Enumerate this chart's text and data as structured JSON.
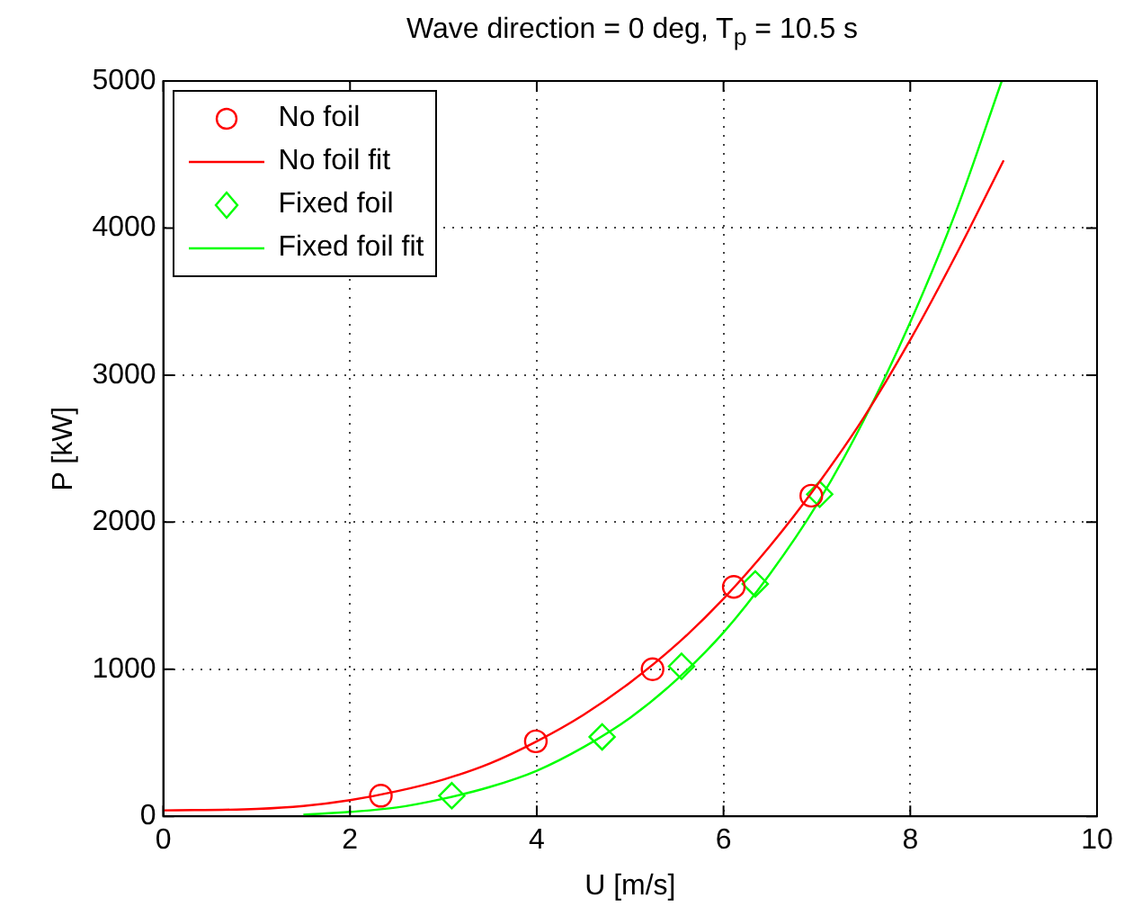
{
  "chart_data": {
    "type": "scatter",
    "title": "Wave direction = 0 deg, T$_{p}$ = 10.5 s",
    "xlabel": "U [m/s]",
    "ylabel": "P [kW]",
    "xlim": [
      0,
      10
    ],
    "xticks": [
      0,
      2,
      4,
      6,
      8,
      10
    ],
    "ylim": [
      0,
      5000
    ],
    "yticks": [
      0,
      1000,
      2000,
      3000,
      4000,
      5000
    ],
    "grid": true,
    "legend": "top left",
    "series": [
      {
        "name": "No foil",
        "marker": "circle",
        "color": "#ff0000",
        "x": [
          2.33,
          3.99,
          5.24,
          6.11,
          6.94
        ],
        "values": [
          140,
          510,
          1000,
          1560,
          2180
        ]
      },
      {
        "name": "No foil fit",
        "type": "line",
        "marker": "none",
        "color": "#ff0000",
        "x": [
          0,
          1,
          1.5,
          2,
          2.5,
          3,
          3.5,
          4,
          4.5,
          5,
          5.5,
          6,
          6.5,
          7,
          7.5,
          8,
          8.5,
          9
        ],
        "values": [
          40,
          50,
          70,
          110,
          170,
          250,
          360,
          510,
          690,
          910,
          1170,
          1480,
          1840,
          2250,
          2710,
          3240,
          3830,
          4460
        ]
      },
      {
        "name": "Fixed foil",
        "marker": "diamond",
        "color": "#00ff00",
        "x": [
          3.09,
          4.7,
          5.55,
          6.34,
          7.03
        ],
        "values": [
          140,
          540,
          1020,
          1580,
          2190
        ]
      },
      {
        "name": "Fixed foil fit",
        "type": "line",
        "marker": "none",
        "color": "#00ff00",
        "x": [
          1.5,
          2,
          2.5,
          3,
          3.5,
          4,
          4.5,
          5,
          5.5,
          6,
          6.5,
          7,
          7.5,
          8,
          8.5,
          8.98
        ],
        "values": [
          10,
          30,
          60,
          120,
          200,
          310,
          470,
          670,
          930,
          1250,
          1650,
          2120,
          2690,
          3360,
          4130,
          5000
        ]
      }
    ]
  }
}
